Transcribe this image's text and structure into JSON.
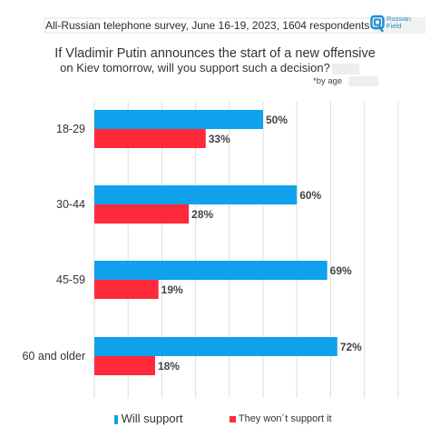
{
  "header": {
    "survey": "All-Russian telephone survey, June 16-19, 2023, 1604 respondents",
    "logo_line1": "Russian",
    "logo_line2": "Field"
  },
  "question_line1": "If Vladimir Putin announces the start of a new offensive",
  "question_line2": "on Kiev tomorrow, will you support such a decision?",
  "subtitle": "*by age",
  "colors": {
    "support": "#10a1ec",
    "not_support": "#fe2a39",
    "grid": "#dddddd",
    "brand": "#1e8fd0"
  },
  "chart_data": {
    "type": "bar",
    "orientation": "horizontal",
    "categories": [
      "18-29",
      "30-44",
      "45-59",
      "60 and older"
    ],
    "series": [
      {
        "name": "Will support",
        "values": [
          50,
          60,
          69,
          72
        ],
        "labels": [
          "50%",
          "60%",
          "69%",
          "72%"
        ]
      },
      {
        "name": "They won´t support it",
        "values": [
          33,
          28,
          19,
          18
        ],
        "labels": [
          "33%",
          "28%",
          "19%",
          "18%"
        ]
      }
    ],
    "xlim": [
      0,
      100
    ],
    "grid": true,
    "legend_position": "bottom"
  },
  "legend": {
    "support_label": "Will support",
    "not_support_label": "They won´t support it"
  }
}
